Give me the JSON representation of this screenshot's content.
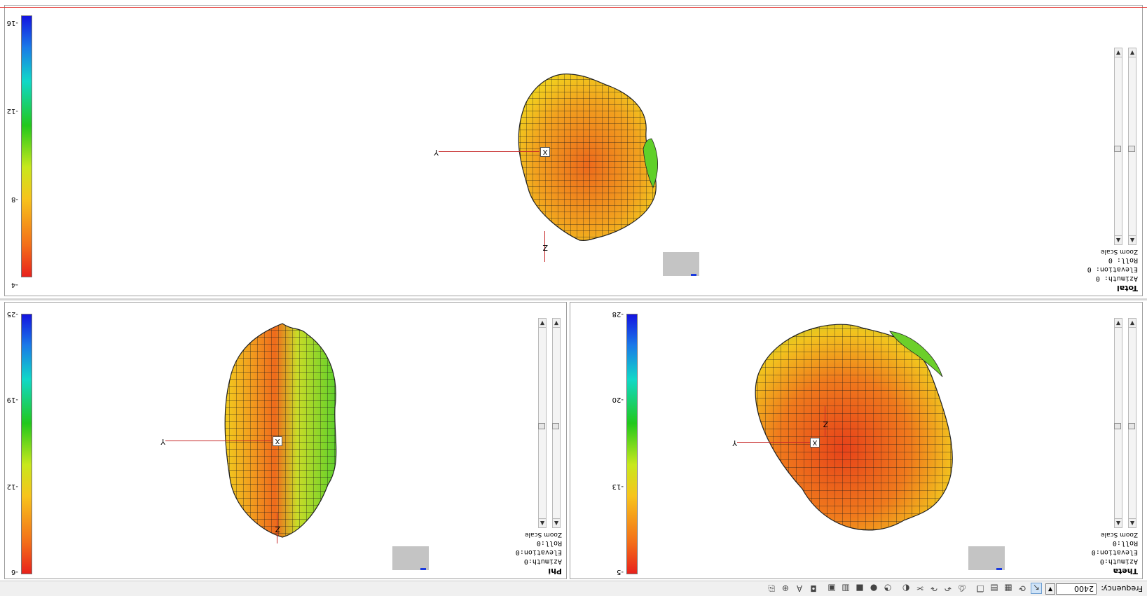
{
  "toolbar": {
    "frequency_label": "Frequency:",
    "frequency_value": "2400",
    "buttons": [
      "pointer-icon",
      "rotate-icon",
      "grid-icon",
      "table-icon",
      "copy-icon",
      "print-icon",
      "undo-icon",
      "redo-icon",
      "cut-icon",
      "palette-icon",
      "pie-icon",
      "sphere-icon",
      "stop-icon",
      "chart-icon",
      "save-icon",
      "camera-icon",
      "text-icon",
      "zoom-icon",
      "print-small-icon"
    ]
  },
  "panels": {
    "theta": {
      "title": "Theta",
      "azimuth": "Azimuth:0",
      "elevation": "Elevation:0",
      "roll": "Roll:0",
      "zoom_label": "Zoom Scale",
      "colorbar_ticks": [
        "-5",
        "-13",
        "-20",
        "-28"
      ]
    },
    "phi": {
      "title": "Phi",
      "azimuth": "Azimuth:0",
      "elevation": "Elevation:0",
      "roll": "Roll:0",
      "zoom_label": "Zoom Scale",
      "colorbar_ticks": [
        "-6",
        "-12",
        "-19",
        "-25"
      ]
    },
    "total": {
      "title": "Total",
      "azimuth": "Azimuth: 0",
      "elevation": "Elevation: 0",
      "roll": "Roll: 0",
      "zoom_label": "Zoom Scale",
      "colorbar_ticks": [
        "-4",
        "-8",
        "-12",
        "-16"
      ]
    }
  },
  "axes": {
    "x": "X",
    "y": "Y",
    "z": "Z"
  },
  "colors": {
    "accent_red": "#c62828",
    "panel_border": "#a0a0a0",
    "toolbar_bg": "#f0f0f0"
  }
}
